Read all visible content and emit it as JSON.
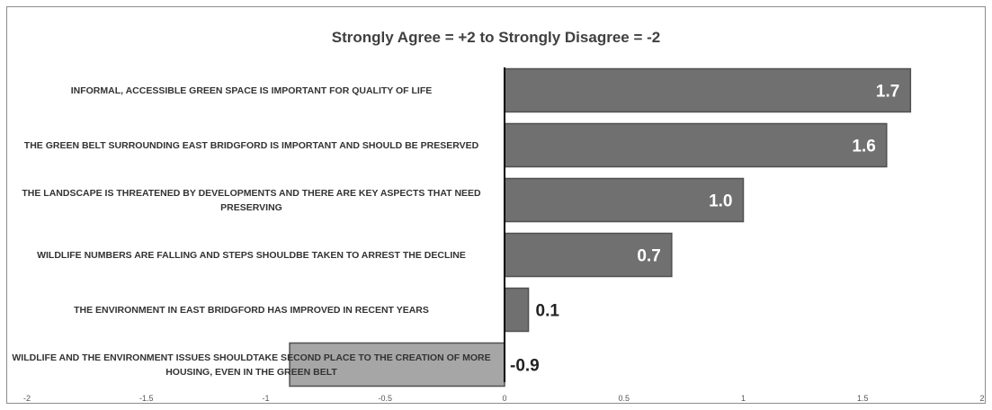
{
  "chart_data": {
    "type": "bar",
    "orientation": "horizontal",
    "title": "Strongly Agree = +2 to Strongly Disagree = -2",
    "xlim": [
      -2,
      2
    ],
    "x_ticks": [
      "-2",
      "-1.5",
      "-1",
      "-0.5",
      "0",
      "0.5",
      "1",
      "1.5",
      "2"
    ],
    "categories": [
      "INFORMAL, ACCESSIBLE GREEN SPACE IS IMPORTANT FOR QUALITY OF LIFE",
      "THE GREEN BELT SURROUNDING EAST BRIDGFORD IS IMPORTANT AND SHOULD BE PRESERVED",
      "THE LANDSCAPE IS THREATENED BY DEVELOPMENTS AND THERE ARE KEY ASPECTS THAT NEED PRESERVING",
      "WILDLIFE NUMBERS ARE FALLING AND STEPS SHOULDBE TAKEN TO ARREST THE DECLINE",
      "THE ENVIRONMENT IN EAST BRIDGFORD HAS IMPROVED IN RECENT YEARS",
      "WILDLIFE AND THE ENVIRONMENT ISSUES SHOULDTAKE SECOND PLACE TO THE CREATION OF MORE HOUSING, EVEN IN THE GREEN BELT"
    ],
    "values": [
      1.7,
      1.6,
      1.0,
      0.7,
      0.1,
      -0.9
    ],
    "value_labels": [
      "1.7",
      "1.6",
      "1.0",
      "0.7",
      "0.1",
      "-0.9"
    ],
    "grid": false,
    "colors": {
      "positive_bar": "#707070",
      "negative_bar": "#a6a6a6",
      "bar_outline": "#505050",
      "inside_label": "#ffffff",
      "outside_label": "#222222"
    }
  }
}
